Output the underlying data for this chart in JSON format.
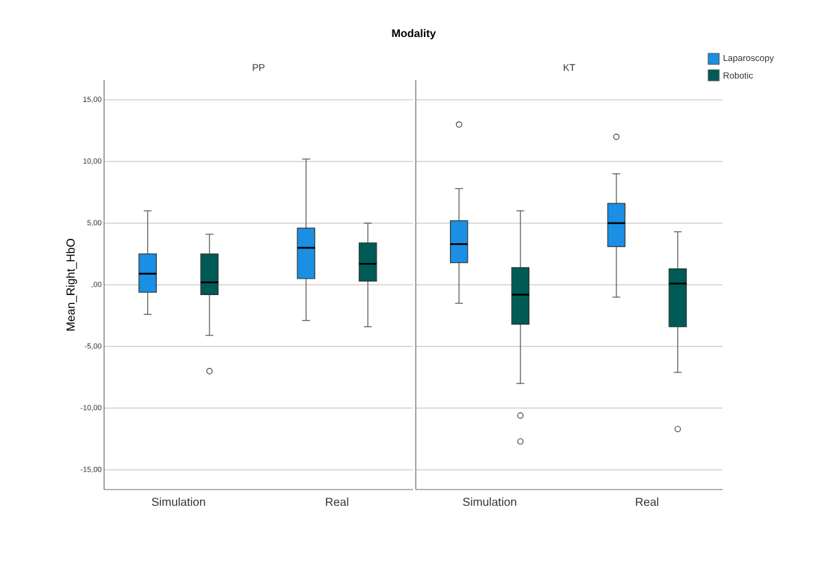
{
  "chart_data": [
    {
      "type": "box",
      "title": "Modality",
      "subtitle": "PP",
      "ylabel": "Mean_Right_HbO",
      "categories": [
        "Simulation",
        "Real"
      ],
      "series": [
        {
          "color": "#1a8fe3",
          "boxes": [
            {
              "low": -2.4,
              "q1": -0.6,
              "median": 0.9,
              "q3": 2.5,
              "high": 6.0
            },
            {
              "low": -2.9,
              "q1": 0.5,
              "median": 3.0,
              "q3": 4.6,
              "high": 10.2
            }
          ]
        },
        {
          "color": "#005a55",
          "boxes": [
            {
              "low": -4.1,
              "q1": -0.8,
              "median": 0.2,
              "q3": 2.5,
              "high": 4.1,
              "outliers": [
                -7.0
              ]
            },
            {
              "low": -3.4,
              "q1": 0.3,
              "median": 1.7,
              "q3": 3.4,
              "high": 5.0
            }
          ]
        }
      ],
      "ylim": [
        -16.6,
        16.6
      ],
      "yticks": [
        {
          "value": -15,
          "label": "-15,00"
        },
        {
          "value": -10,
          "label": "-10,00"
        },
        {
          "value": -5,
          "label": "-5,00"
        },
        {
          "value": 0,
          "label": ",00"
        },
        {
          "value": 5,
          "label": "5,00"
        },
        {
          "value": 10,
          "label": "10,00"
        },
        {
          "value": 15,
          "label": "15,00"
        }
      ],
      "grid": "y",
      "marker": "circle"
    },
    {
      "type": "box",
      "subtitle": "KT",
      "categories": [
        "Simulation",
        "Real"
      ],
      "series": [
        {
          "name": "Laparoscopy",
          "color": "#1a8fe3",
          "boxes": [
            {
              "low": -1.5,
              "q1": 1.8,
              "median": 3.3,
              "q3": 5.2,
              "high": 7.8,
              "outliers": [
                13.0
              ]
            },
            {
              "low": -1.0,
              "q1": 3.1,
              "median": 5.0,
              "q3": 6.6,
              "high": 9.0,
              "outliers": [
                12.0
              ]
            }
          ]
        },
        {
          "name": "Robotic",
          "color": "#005a55",
          "boxes": [
            {
              "low": -8.0,
              "q1": -3.2,
              "median": -0.8,
              "q3": 1.4,
              "high": 6.0,
              "outliers": [
                -10.6,
                -12.7
              ]
            },
            {
              "low": -7.1,
              "q1": -3.4,
              "median": 0.1,
              "q3": 1.3,
              "high": 4.3,
              "outliers": [
                -11.7
              ]
            }
          ]
        }
      ],
      "ylim": [
        -16.6,
        16.6
      ],
      "yticks": [
        {
          "value": -15,
          "label": null
        },
        {
          "value": -10,
          "label": null
        },
        {
          "value": -5,
          "label": null
        },
        {
          "value": 0,
          "label": null
        },
        {
          "value": 5,
          "label": null
        },
        {
          "value": 10,
          "label": null
        },
        {
          "value": 15,
          "label": null
        }
      ],
      "grid": "y",
      "marker": "circle",
      "tick_labels": "x",
      "legend": "top right"
    }
  ]
}
